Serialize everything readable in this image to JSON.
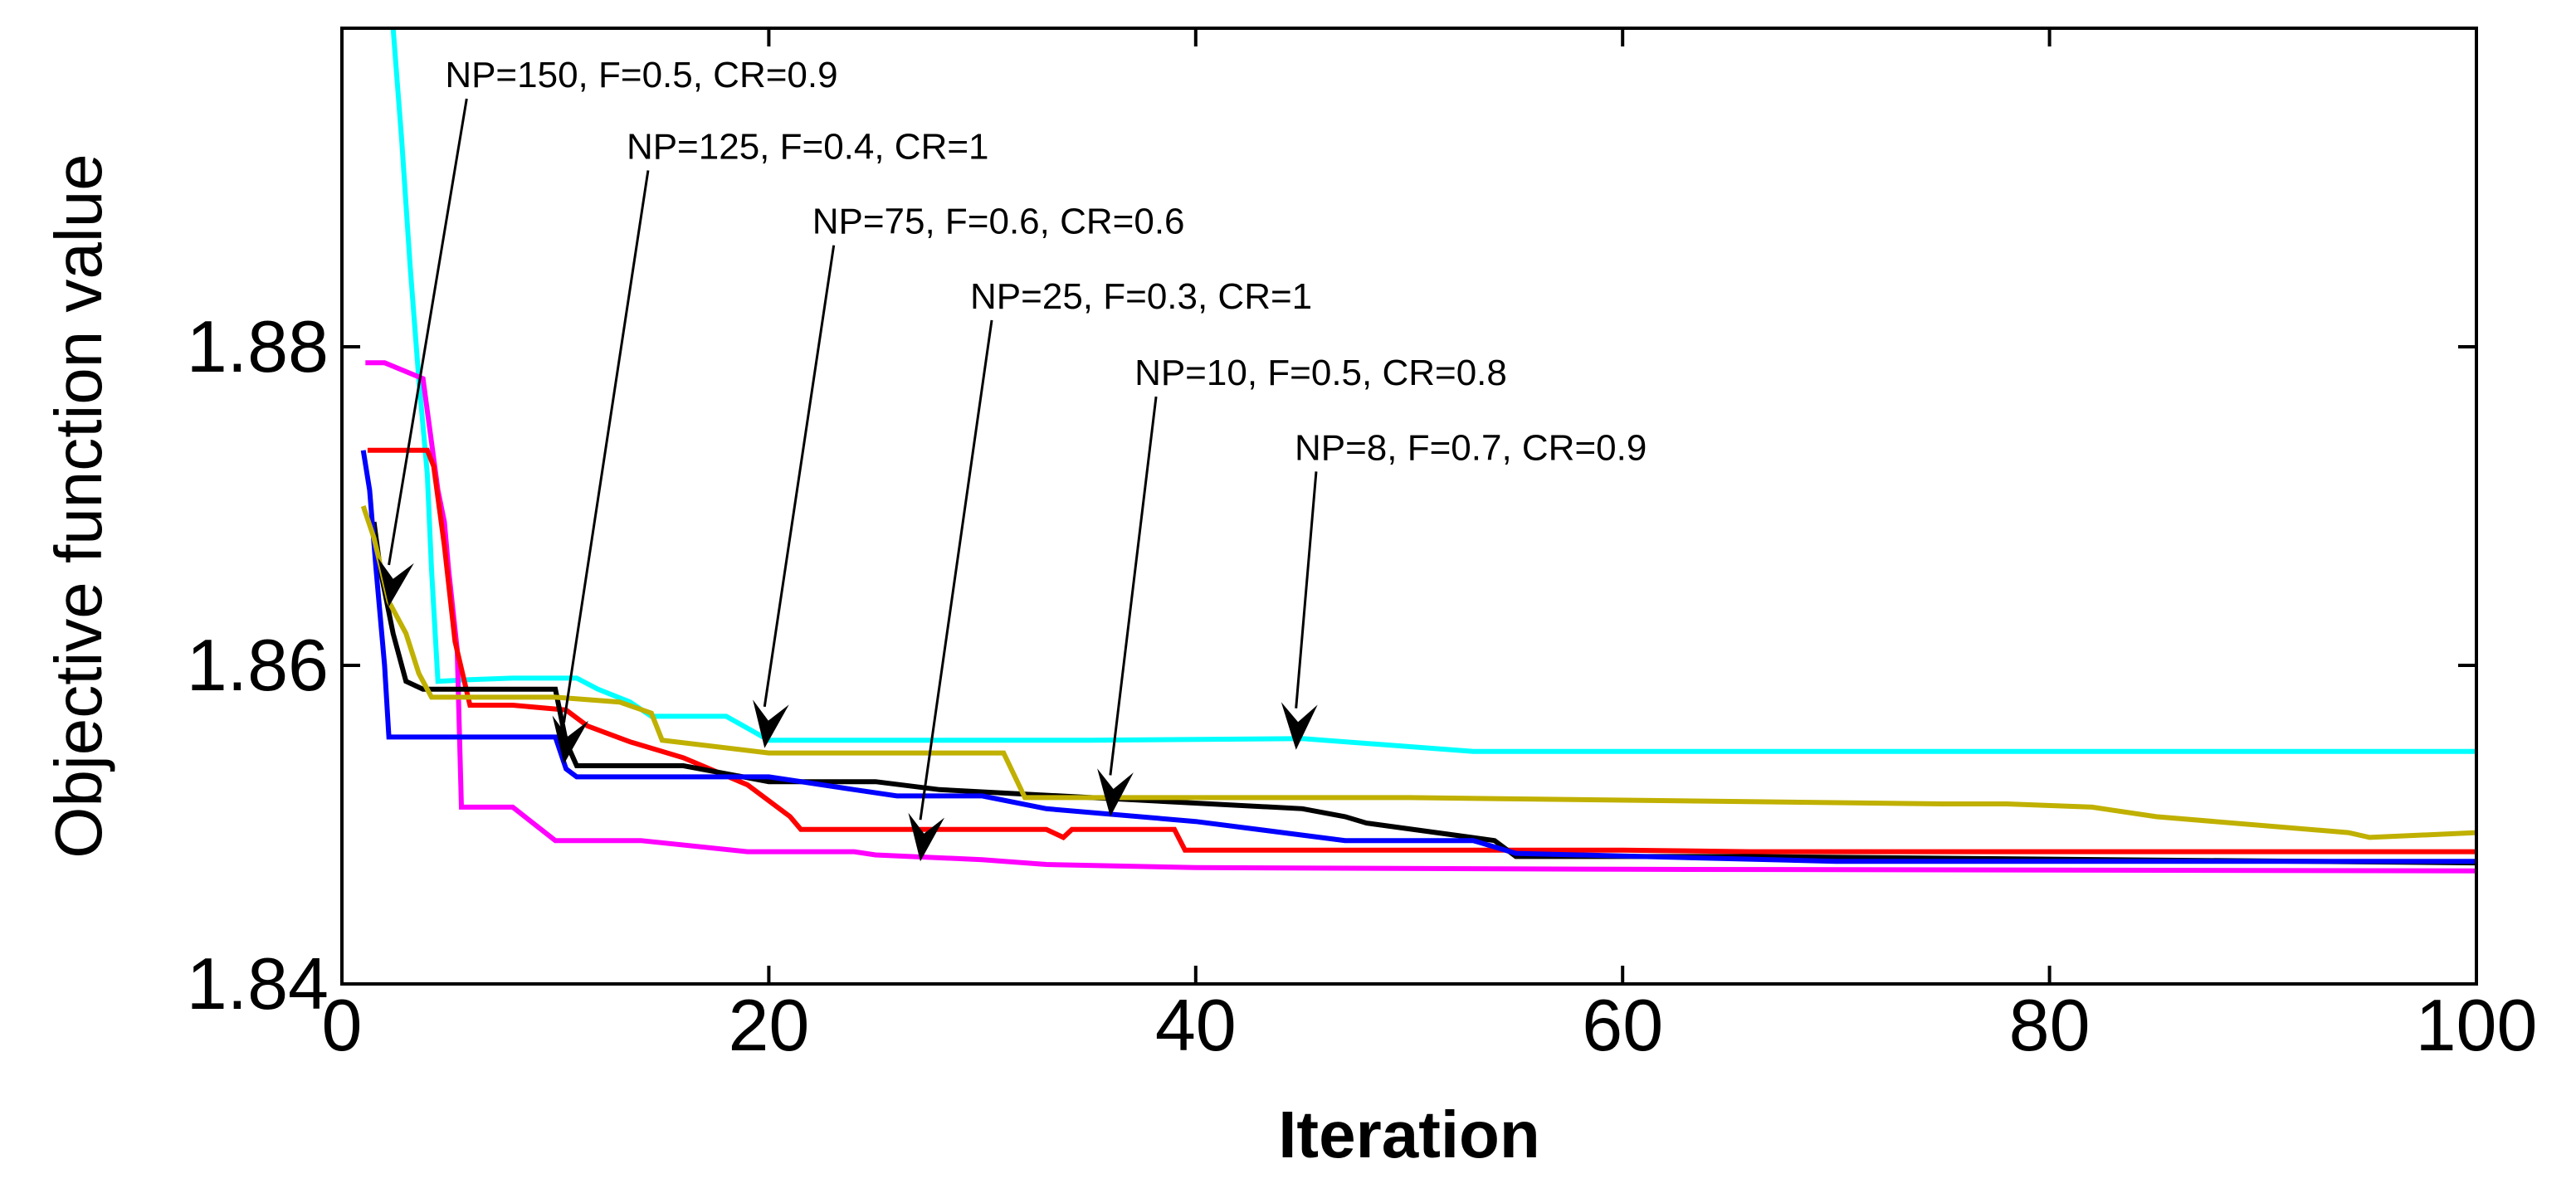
{
  "chart_data": {
    "type": "line",
    "title": "",
    "xlabel": "Iteration",
    "ylabel": "Objective function value",
    "xlim": [
      0,
      100
    ],
    "ylim": [
      1.84,
      1.9
    ],
    "xticks": [
      0,
      20,
      40,
      60,
      80,
      100
    ],
    "yticks": [
      1.84,
      1.86,
      1.88
    ],
    "xtick_labels": [
      "0",
      "20",
      "40",
      "60",
      "80",
      "100"
    ],
    "ytick_labels": [
      "1.84",
      "1.86",
      "1.88"
    ],
    "grid": false,
    "legend": "none",
    "series": [
      {
        "name": "cyan",
        "color": "#00ffff",
        "x": [
          2.4,
          2.8,
          3.2,
          3.6,
          4.0,
          4.2,
          4.5,
          6.0,
          8.0,
          11.0,
          12.0,
          13.5,
          14.5,
          18.0,
          20.0,
          35.0,
          45.0,
          53.0,
          100
        ],
        "y": [
          1.9,
          1.893,
          1.885,
          1.878,
          1.872,
          1.866,
          1.859,
          1.8591,
          1.8592,
          1.8592,
          1.8585,
          1.8577,
          1.8568,
          1.8568,
          1.8553,
          1.8553,
          1.8554,
          1.8546,
          1.8546
        ]
      },
      {
        "name": "magenta",
        "color": "#ff00ff",
        "x": [
          1.1,
          2.0,
          3.8,
          4.5,
          4.8,
          5.0,
          5.4,
          5.6,
          6.0,
          8.0,
          10.0,
          14.0,
          19.0,
          24.0,
          25.0,
          30.0,
          33.0,
          40.0,
          60.0,
          100
        ],
        "y": [
          1.879,
          1.879,
          1.878,
          1.871,
          1.869,
          1.866,
          1.861,
          1.8511,
          1.8511,
          1.8511,
          1.849,
          1.849,
          1.8483,
          1.8483,
          1.8481,
          1.8478,
          1.8475,
          1.8473,
          1.8472,
          1.8471
        ]
      },
      {
        "name": "red",
        "color": "#ff0000",
        "x": [
          1.2,
          2.0,
          4.0,
          4.3,
          4.8,
          5.3,
          6.0,
          8.0,
          10.5,
          11.5,
          13.5,
          16.0,
          19.0,
          21.0,
          21.5,
          22.0,
          33.0,
          33.8,
          34.2,
          39.0,
          39.5,
          40.0,
          60.0,
          66.0,
          100
        ],
        "y": [
          1.8735,
          1.8735,
          1.8735,
          1.8725,
          1.8675,
          1.8615,
          1.8575,
          1.8575,
          1.8572,
          1.8562,
          1.8552,
          1.8542,
          1.8525,
          1.8505,
          1.8497,
          1.8497,
          1.8497,
          1.8492,
          1.8497,
          1.8497,
          1.8484,
          1.8484,
          1.8484,
          1.8483,
          1.8483
        ]
      },
      {
        "name": "black",
        "color": "#000000",
        "x": [
          1.5,
          1.8,
          2.4,
          3.0,
          3.8,
          6.0,
          10.0,
          10.5,
          11.0,
          16.0,
          20.0,
          25.0,
          28.0,
          45.0,
          47.0,
          48.0,
          54.0,
          55.0,
          66.0,
          100
        ],
        "y": [
          1.869,
          1.866,
          1.862,
          1.859,
          1.8585,
          1.8585,
          1.8585,
          1.8552,
          1.8537,
          1.8537,
          1.8527,
          1.8527,
          1.8522,
          1.851,
          1.8505,
          1.8501,
          1.849,
          1.848,
          1.848,
          1.8476
        ]
      },
      {
        "name": "blue",
        "color": "#0000ff",
        "x": [
          1.0,
          1.3,
          1.6,
          2.0,
          2.2,
          4.0,
          6.0,
          10.0,
          10.5,
          11.0,
          16.0,
          20.0,
          24.0,
          26.0,
          30.0,
          33.0,
          40.0,
          47.0,
          53.0,
          55.0,
          70.0,
          100
        ],
        "y": [
          1.8735,
          1.871,
          1.866,
          1.86,
          1.8555,
          1.8555,
          1.8555,
          1.8555,
          1.8535,
          1.853,
          1.853,
          1.853,
          1.8522,
          1.8518,
          1.8518,
          1.851,
          1.8502,
          1.849,
          1.849,
          1.8482,
          1.8477,
          1.8477
        ]
      },
      {
        "name": "olive",
        "color": "#c0b000",
        "x": [
          1.0,
          1.5,
          2.2,
          3.0,
          3.6,
          4.2,
          10.0,
          13.0,
          14.5,
          15.0,
          20.0,
          25.0,
          31.0,
          32.0,
          50.0,
          75.0,
          78.0,
          82.0,
          85.0,
          94.0,
          95.0,
          100
        ],
        "y": [
          1.87,
          1.868,
          1.864,
          1.862,
          1.8595,
          1.858,
          1.858,
          1.8577,
          1.857,
          1.8553,
          1.8545,
          1.8545,
          1.8545,
          1.8517,
          1.8517,
          1.8513,
          1.8513,
          1.8511,
          1.8505,
          1.8495,
          1.8492,
          1.8495
        ]
      }
    ],
    "annotations": [
      {
        "text": "NP=150, F=0.5, CR=0.9",
        "label_x": 6.0,
        "label_y": 1.8963,
        "arrow_x": 2.2,
        "arrow_y": 1.8637
      },
      {
        "text": "NP=125, F=0.4, CR=1",
        "label_x": 14.5,
        "label_y": 1.8918,
        "arrow_x": 10.4,
        "arrow_y": 1.8538
      },
      {
        "text": "NP=75, F=0.6, CR=0.6",
        "label_x": 23.2,
        "label_y": 1.8871,
        "arrow_x": 19.8,
        "arrow_y": 1.8548
      },
      {
        "text": "NP=25, F=0.3, CR=1",
        "label_x": 30.6,
        "label_y": 1.8824,
        "arrow_x": 27.1,
        "arrow_y": 1.8477
      },
      {
        "text": "NP=10, F=0.5, CR=0.8",
        "label_x": 38.3,
        "label_y": 1.8776,
        "arrow_x": 36.0,
        "arrow_y": 1.8505
      },
      {
        "text": "NP=8, F=0.7, CR=0.9",
        "label_x": 45.8,
        "label_y": 1.8729,
        "arrow_x": 44.7,
        "arrow_y": 1.8547
      }
    ]
  }
}
